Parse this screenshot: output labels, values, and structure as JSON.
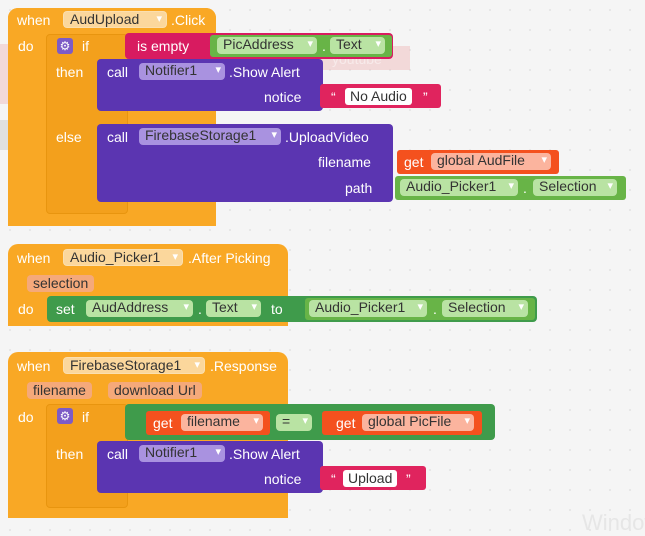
{
  "block1": {
    "when": "when",
    "component": "AudUpload",
    "event": ".Click",
    "do": "do",
    "if": "if",
    "is_empty": "is empty",
    "pic_address": "PicAddress",
    "dot1": ".",
    "text_prop": "Text",
    "then": "then",
    "call1": "call",
    "notifier": "Notifier1",
    "show_alert": ".Show Alert",
    "notice": "notice",
    "quote_open": "“",
    "quote_close": "”",
    "no_audio": "No Audio",
    "else": "else",
    "call2": "call",
    "firebase": "FirebaseStorage1",
    "upload_video": ".UploadVideo",
    "filename_label": "filename",
    "get1": "get",
    "global_audfile": "global AudFile",
    "path_label": "path",
    "audio_picker": "Audio_Picker1",
    "dot2": ".",
    "selection": "Selection"
  },
  "block2": {
    "when": "when",
    "component": "Audio_Picker1",
    "event": ".After Picking",
    "param": "selection",
    "do": "do",
    "set": "set",
    "aud_address": "AudAddress",
    "dot1": ".",
    "text_prop": "Text",
    "to": "to",
    "audio_picker": "Audio_Picker1",
    "dot2": ".",
    "selection": "Selection"
  },
  "block3": {
    "when": "when",
    "component": "FirebaseStorage1",
    "event": ".Response",
    "param1": "filename",
    "param2": "download Url",
    "do": "do",
    "if": "if",
    "get1": "get",
    "filename_var": "filename",
    "eq": "=",
    "get2": "get",
    "global_picfile": "global PicFile",
    "then": "then",
    "call": "call",
    "notifier": "Notifier1",
    "show_alert": ".Show Alert",
    "notice": "notice",
    "quote_open": "“",
    "quote_close": "”",
    "upload": "Upload"
  },
  "background": {
    "faded_text": "youtube",
    "watermark": "Window"
  }
}
